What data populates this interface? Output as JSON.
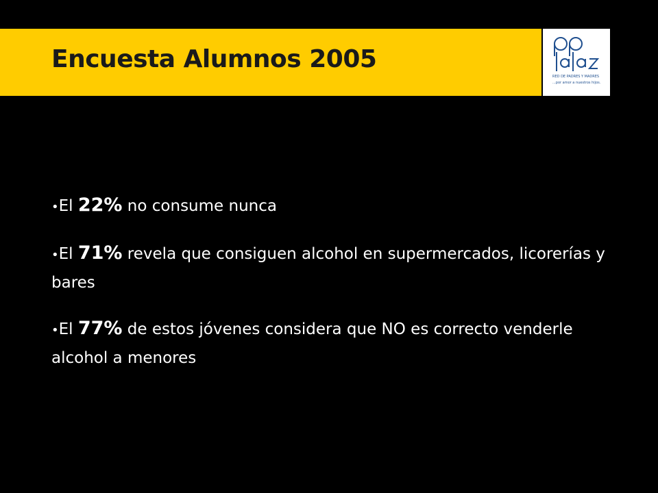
{
  "header": {
    "title": "Encuesta Alumnos 2005"
  },
  "logo": {
    "tagline": "RED DE PADRES Y MADRES",
    "motto": "...por amor a nuestros hijos."
  },
  "bullets": [
    {
      "prefix": "El ",
      "highlight": "22%",
      "text": " no consume nunca"
    },
    {
      "prefix": "El ",
      "highlight": "71%",
      "text": " revela que consiguen alcohol en supermercados, licorerías y bares"
    },
    {
      "prefix": "El ",
      "highlight": "77%",
      "text": " de estos jóvenes considera que NO es correcto venderle alcohol a menores"
    }
  ]
}
